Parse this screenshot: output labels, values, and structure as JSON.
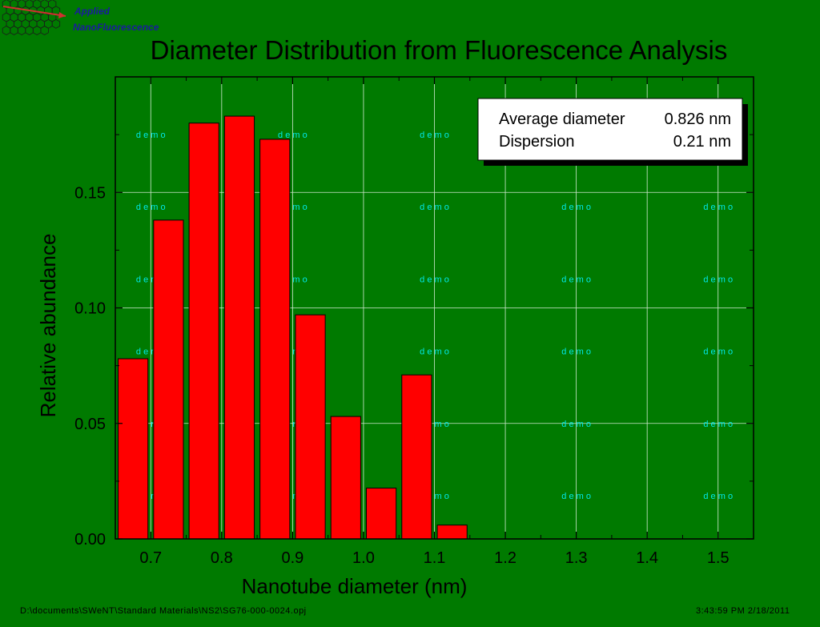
{
  "logo": {
    "line1": "Applied",
    "line2": "NanoFluorescence",
    "icon": "hexagon-lattice-logo-icon",
    "colors": {
      "text": "#1a1aa0",
      "arrow": "#d03030",
      "hex": "#1a1a1a"
    }
  },
  "chart_data": {
    "type": "bar",
    "title": "Diameter Distribution from Fluorescence Analysis",
    "xlabel": "Nanotube diameter (nm)",
    "ylabel": "Relative abundance",
    "x": [
      0.675,
      0.725,
      0.775,
      0.825,
      0.875,
      0.925,
      0.975,
      1.025,
      1.075,
      1.125
    ],
    "values": [
      0.078,
      0.138,
      0.18,
      0.183,
      0.173,
      0.097,
      0.053,
      0.022,
      0.071,
      0.006
    ],
    "bar_width": 0.042,
    "xlim": [
      0.65,
      1.55
    ],
    "ylim": [
      0,
      0.2
    ],
    "xticks": [
      0.7,
      0.8,
      0.9,
      1.0,
      1.1,
      1.2,
      1.3,
      1.4,
      1.5
    ],
    "xtick_labels": [
      "0.7",
      "0.8",
      "0.9",
      "1.0",
      "1.1",
      "1.2",
      "1.3",
      "1.4",
      "1.5"
    ],
    "yticks": [
      0.0,
      0.05,
      0.1,
      0.15
    ],
    "ytick_labels": [
      "0.00",
      "0.05",
      "0.10",
      "0.15"
    ],
    "grid": true,
    "colors": {
      "background": "#007a00",
      "bar": "#ff0000",
      "grid": "#d0e8d0",
      "watermark": "#00e8e8"
    },
    "annotation": {
      "position": "top-right",
      "rows": [
        {
          "label": "Average diameter",
          "value": "0.826 nm"
        },
        {
          "label": "Dispersion",
          "value": "0.21 nm"
        }
      ]
    },
    "watermark": {
      "text": "d e m o",
      "columns": [
        0.7,
        0.9,
        1.1,
        1.3,
        1.5
      ],
      "rows": [
        0.175,
        0.1438,
        0.1125,
        0.0813,
        0.05,
        0.0188
      ]
    }
  },
  "footer": {
    "path": "D:\\documents\\SWeNT\\Standard Materials\\NS2\\SG76-000-0024.opj",
    "timestamp": "3:43:59 PM  2/18/2011"
  }
}
